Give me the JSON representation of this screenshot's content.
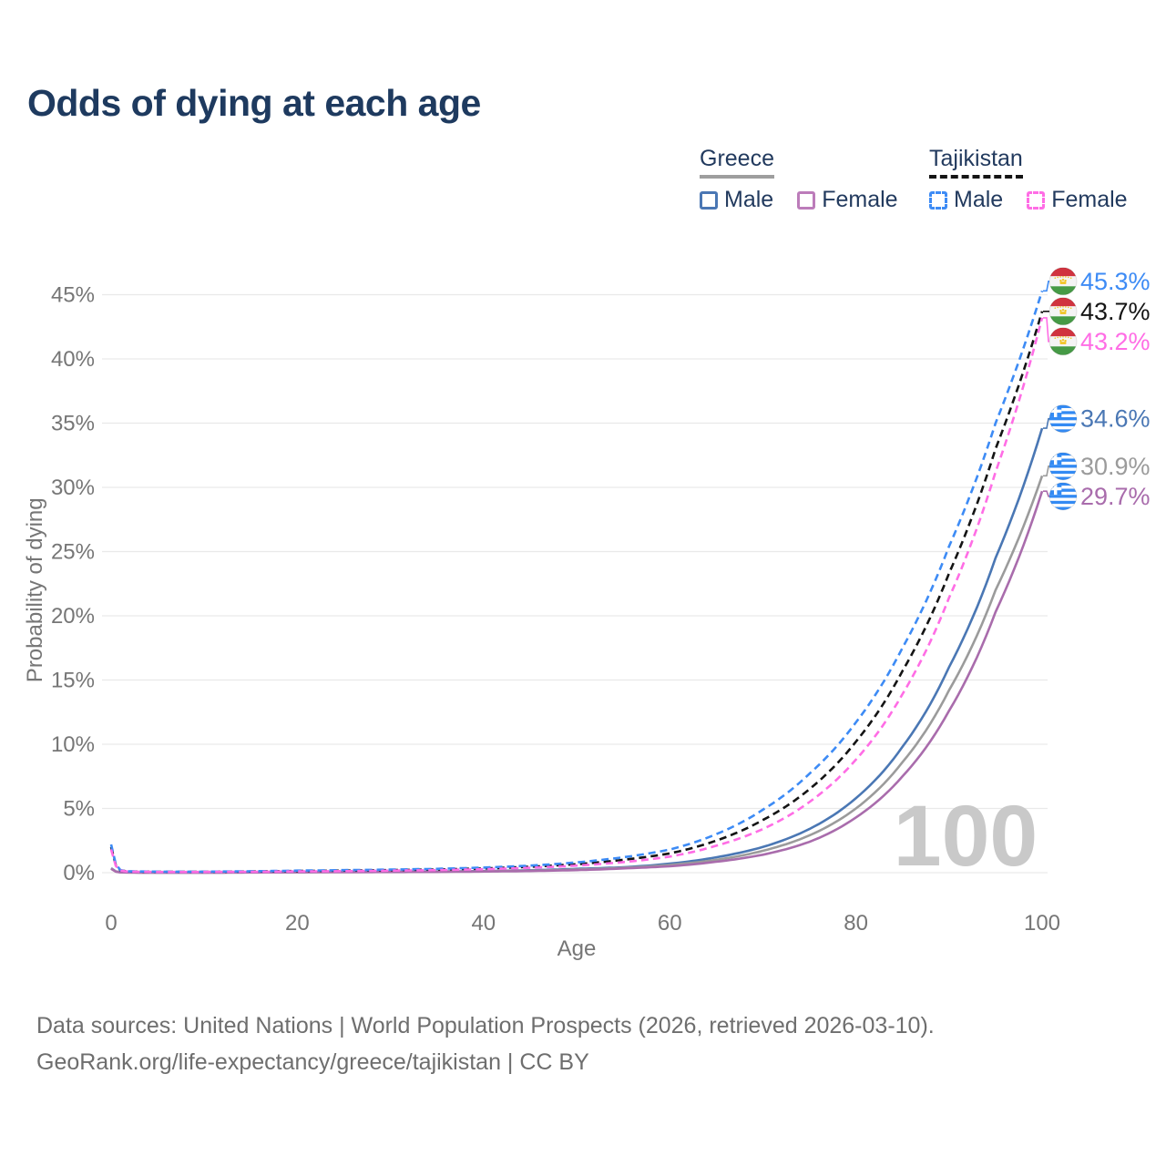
{
  "title": "Odds of dying at each age",
  "legend": {
    "groups": [
      {
        "name": "Greece",
        "underline_style": "solid",
        "underline_color": "#9e9e9e",
        "items": [
          {
            "label": "Male",
            "color": "#4a77b4",
            "dashed": false
          },
          {
            "label": "Female",
            "color": "#bc7cba",
            "dashed": false
          }
        ]
      },
      {
        "name": "Tajikistan",
        "underline_style": "dashed",
        "underline_color": "#141414",
        "items": [
          {
            "label": "Male",
            "color": "#3d8bf5",
            "dashed": true
          },
          {
            "label": "Female",
            "color": "#ff6de5",
            "dashed": true
          }
        ]
      }
    ]
  },
  "chart_data": {
    "type": "line",
    "title": "Odds of dying at each age",
    "xlabel": "Age",
    "ylabel": "Probability of dying",
    "xlim": [
      0,
      100
    ],
    "ylim": [
      0,
      46
    ],
    "x_ticks": [
      0,
      20,
      40,
      60,
      80,
      100
    ],
    "y_ticks": [
      0,
      5,
      10,
      15,
      20,
      25,
      30,
      35,
      40,
      45
    ],
    "y_tick_suffix": "%",
    "grid": "horizontal",
    "watermark": "100",
    "series": [
      {
        "name": "Greece Male",
        "country": "Greece",
        "color": "#4a77b4",
        "dashed": false,
        "end_value": 34.6,
        "end_label": "34.6%",
        "flag": "greece",
        "points": [
          [
            0,
            0.35
          ],
          [
            1,
            0.03
          ],
          [
            2,
            0.02
          ],
          [
            5,
            0.012
          ],
          [
            10,
            0.012
          ],
          [
            15,
            0.03
          ],
          [
            20,
            0.05
          ],
          [
            25,
            0.06
          ],
          [
            30,
            0.07
          ],
          [
            35,
            0.09
          ],
          [
            40,
            0.13
          ],
          [
            45,
            0.19
          ],
          [
            50,
            0.3
          ],
          [
            55,
            0.42
          ],
          [
            60,
            0.7
          ],
          [
            65,
            1.2
          ],
          [
            70,
            2.0
          ],
          [
            75,
            3.4
          ],
          [
            80,
            5.8
          ],
          [
            85,
            9.8
          ],
          [
            90,
            16.0
          ],
          [
            95,
            24.5
          ],
          [
            100,
            34.6
          ]
        ]
      },
      {
        "name": "Greece",
        "country": "Greece",
        "color": "#9b9b9b",
        "dashed": false,
        "end_value": 30.9,
        "end_label": "30.9%",
        "flag": "greece",
        "points": [
          [
            0,
            0.32
          ],
          [
            1,
            0.025
          ],
          [
            2,
            0.015
          ],
          [
            5,
            0.01
          ],
          [
            10,
            0.01
          ],
          [
            15,
            0.02
          ],
          [
            20,
            0.04
          ],
          [
            25,
            0.05
          ],
          [
            30,
            0.06
          ],
          [
            35,
            0.08
          ],
          [
            40,
            0.11
          ],
          [
            45,
            0.16
          ],
          [
            50,
            0.25
          ],
          [
            55,
            0.38
          ],
          [
            60,
            0.6
          ],
          [
            65,
            1.0
          ],
          [
            70,
            1.7
          ],
          [
            75,
            2.9
          ],
          [
            80,
            5.0
          ],
          [
            85,
            8.6
          ],
          [
            90,
            14.2
          ],
          [
            95,
            22.0
          ],
          [
            100,
            30.9
          ]
        ]
      },
      {
        "name": "Greece Female",
        "country": "Greece",
        "color": "#a96cac",
        "dashed": false,
        "end_value": 29.7,
        "end_label": "29.7%",
        "flag": "greece",
        "points": [
          [
            0,
            0.3
          ],
          [
            1,
            0.02
          ],
          [
            2,
            0.012
          ],
          [
            5,
            0.008
          ],
          [
            10,
            0.008
          ],
          [
            15,
            0.015
          ],
          [
            20,
            0.03
          ],
          [
            25,
            0.04
          ],
          [
            30,
            0.05
          ],
          [
            35,
            0.06
          ],
          [
            40,
            0.09
          ],
          [
            45,
            0.13
          ],
          [
            50,
            0.2
          ],
          [
            55,
            0.33
          ],
          [
            60,
            0.5
          ],
          [
            65,
            0.85
          ],
          [
            70,
            1.4
          ],
          [
            75,
            2.4
          ],
          [
            80,
            4.3
          ],
          [
            85,
            7.5
          ],
          [
            90,
            12.6
          ],
          [
            95,
            20.3
          ],
          [
            100,
            29.7
          ]
        ]
      },
      {
        "name": "Tajikistan",
        "country": "Tajikistan",
        "color": "#141414",
        "dashed": true,
        "end_value": 43.7,
        "end_label": "43.7%",
        "flag": "tajikistan",
        "points": [
          [
            0,
            2.0
          ],
          [
            1,
            0.18
          ],
          [
            2,
            0.09
          ],
          [
            5,
            0.07
          ],
          [
            10,
            0.07
          ],
          [
            15,
            0.09
          ],
          [
            20,
            0.13
          ],
          [
            25,
            0.16
          ],
          [
            30,
            0.2
          ],
          [
            35,
            0.25
          ],
          [
            40,
            0.33
          ],
          [
            45,
            0.46
          ],
          [
            50,
            0.66
          ],
          [
            55,
            1.0
          ],
          [
            60,
            1.5
          ],
          [
            65,
            2.5
          ],
          [
            70,
            4.1
          ],
          [
            75,
            6.5
          ],
          [
            80,
            10.2
          ],
          [
            85,
            15.7
          ],
          [
            90,
            23.3
          ],
          [
            95,
            33.0
          ],
          [
            100,
            43.7
          ]
        ]
      },
      {
        "name": "Tajikistan Male",
        "country": "Tajikistan",
        "color": "#3d8bf5",
        "dashed": true,
        "end_value": 45.3,
        "end_label": "45.3%",
        "flag": "tajikistan",
        "points": [
          [
            0,
            2.2
          ],
          [
            1,
            0.2
          ],
          [
            2,
            0.1
          ],
          [
            5,
            0.08
          ],
          [
            10,
            0.08
          ],
          [
            15,
            0.11
          ],
          [
            20,
            0.16
          ],
          [
            25,
            0.2
          ],
          [
            30,
            0.24
          ],
          [
            35,
            0.3
          ],
          [
            40,
            0.4
          ],
          [
            45,
            0.55
          ],
          [
            50,
            0.8
          ],
          [
            55,
            1.2
          ],
          [
            60,
            1.8
          ],
          [
            65,
            3.0
          ],
          [
            70,
            4.9
          ],
          [
            75,
            7.7
          ],
          [
            80,
            11.7
          ],
          [
            85,
            17.5
          ],
          [
            90,
            25.4
          ],
          [
            95,
            35.0
          ],
          [
            100,
            45.3
          ]
        ]
      },
      {
        "name": "Tajikistan Female",
        "country": "Tajikistan",
        "color": "#ff6de5",
        "dashed": true,
        "end_value": 43.2,
        "end_label": "43.2%",
        "flag": "tajikistan",
        "points": [
          [
            0,
            1.8
          ],
          [
            1,
            0.16
          ],
          [
            2,
            0.08
          ],
          [
            5,
            0.06
          ],
          [
            10,
            0.06
          ],
          [
            15,
            0.07
          ],
          [
            20,
            0.1
          ],
          [
            25,
            0.12
          ],
          [
            30,
            0.16
          ],
          [
            35,
            0.2
          ],
          [
            40,
            0.27
          ],
          [
            45,
            0.38
          ],
          [
            50,
            0.55
          ],
          [
            55,
            0.82
          ],
          [
            60,
            1.25
          ],
          [
            65,
            2.1
          ],
          [
            70,
            3.4
          ],
          [
            75,
            5.5
          ],
          [
            80,
            8.8
          ],
          [
            85,
            13.9
          ],
          [
            90,
            21.4
          ],
          [
            95,
            31.2
          ],
          [
            100,
            43.2
          ]
        ]
      }
    ]
  },
  "colors": {
    "title": "#1e3a5f",
    "axis_text": "#767676",
    "gridline": "#e9e9e9",
    "watermark": "#c9c9c9",
    "footer_text": "#6e6e6e",
    "flag_greece_blue": "#338af3",
    "flag_tajikistan_red": "#d0333f",
    "flag_tajikistan_green": "#469a46",
    "flag_tajikistan_gold": "#f2c31f"
  },
  "footer": {
    "line1": "Data sources: United Nations | World Population Prospects (2026, retrieved 2026-03-10).",
    "line2": "GeoRank.org/life-expectancy/greece/tajikistan | CC BY"
  }
}
